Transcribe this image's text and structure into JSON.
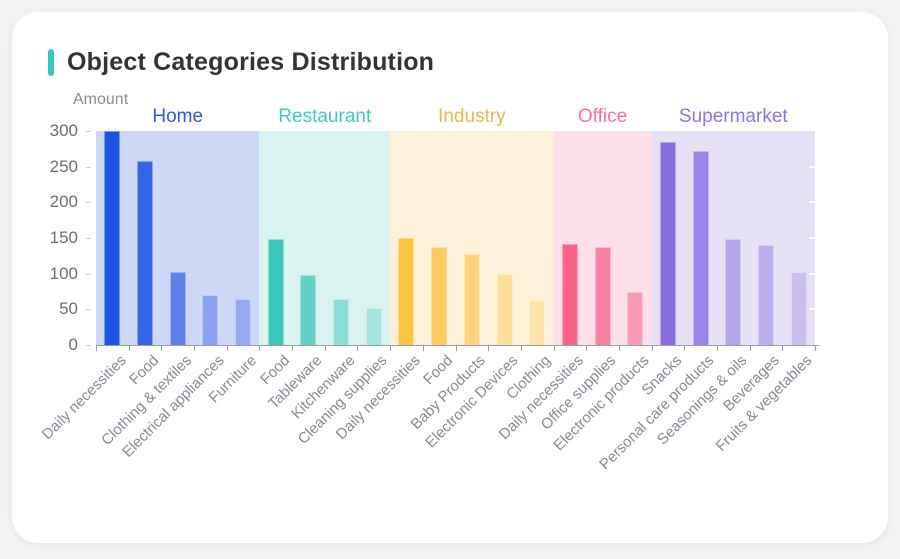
{
  "card": {
    "title": "Object Categories Distribution",
    "accent_color": "#36c6bd"
  },
  "chart_data": {
    "type": "bar",
    "title": "Object Categories Distribution",
    "xlabel": "",
    "ylabel": "Amount",
    "ylim": [
      0,
      300
    ],
    "y_ticks": [
      300,
      250,
      200,
      150,
      100,
      50,
      0
    ],
    "grid": false,
    "legend_position": "top-inline-group-headers",
    "groups": [
      {
        "name": "Home",
        "label_color": "#2b5aea",
        "band_color": "#cdd8f6",
        "bars": [
          {
            "label": "Daily necessities",
            "value": 300,
            "color": "#1c55e4"
          },
          {
            "label": "Food",
            "value": 258,
            "color": "#3467e7"
          },
          {
            "label": "Clothing & textiles",
            "value": 103,
            "color": "#5f82ea"
          },
          {
            "label": "Electrical appliances",
            "value": 70,
            "color": "#8aa2ef"
          },
          {
            "label": "Furniture",
            "value": 65,
            "color": "#97acf0"
          }
        ]
      },
      {
        "name": "Restaurant",
        "label_color": "#41c8be",
        "band_color": "#d9f3f0",
        "bars": [
          {
            "label": "Food",
            "value": 148,
            "color": "#3ec6bc"
          },
          {
            "label": "Tableware",
            "value": 98,
            "color": "#65cfc7"
          },
          {
            "label": "Kitchenware",
            "value": 65,
            "color": "#8edcd6"
          },
          {
            "label": "Cleaning supplies",
            "value": 52,
            "color": "#a5e3de"
          }
        ]
      },
      {
        "name": "Industry",
        "label_color": "#ecb64d",
        "band_color": "#fdf1da",
        "bars": [
          {
            "label": "Daily necessities",
            "value": 150,
            "color": "#fdc343"
          },
          {
            "label": "Food",
            "value": 138,
            "color": "#fdcb60"
          },
          {
            "label": "Baby Products",
            "value": 127,
            "color": "#fdd47d"
          },
          {
            "label": "Electronic Devices",
            "value": 100,
            "color": "#fede9a"
          },
          {
            "label": "Clothing",
            "value": 63,
            "color": "#fee3ab"
          }
        ]
      },
      {
        "name": "Office",
        "label_color": "#fa6e96",
        "band_color": "#fde0e9",
        "bars": [
          {
            "label": "Daily necessities",
            "value": 142,
            "color": "#fa6488"
          },
          {
            "label": "Office supplies",
            "value": 138,
            "color": "#fa82a0"
          },
          {
            "label": "Electronic products",
            "value": 75,
            "color": "#fb9ab4"
          }
        ]
      },
      {
        "name": "Supermarket",
        "label_color": "#8d75e6",
        "band_color": "#e7e1f8",
        "bars": [
          {
            "label": "Snacks",
            "value": 285,
            "color": "#8a6ee0"
          },
          {
            "label": "Personal care products",
            "value": 272,
            "color": "#9b84e6"
          },
          {
            "label": "Seasonings & oils",
            "value": 148,
            "color": "#b5a5ed"
          },
          {
            "label": "Beverages",
            "value": 140,
            "color": "#bcaeee"
          },
          {
            "label": "Fruits & vegetables",
            "value": 102,
            "color": "#cabef1"
          }
        ]
      }
    ]
  }
}
